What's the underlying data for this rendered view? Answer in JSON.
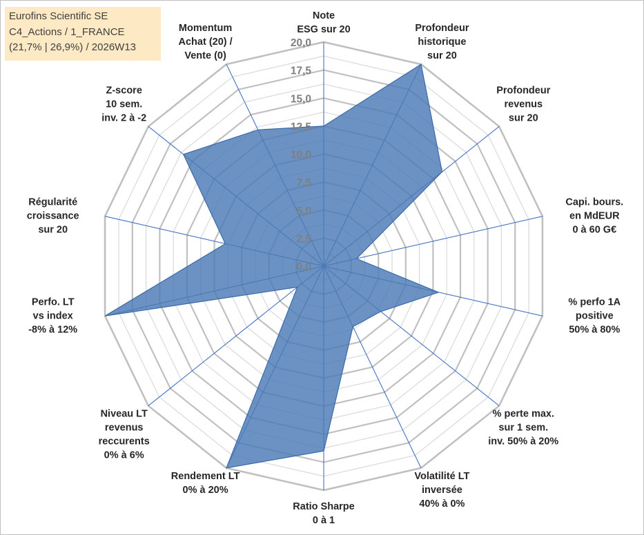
{
  "info_box": {
    "line1": "Eurofins Scientific SE",
    "line2": "C4_Actions / 1_FRANCE",
    "line3": "(21,7% | 26,9%) / 2026W13"
  },
  "colors": {
    "fill": "#4a7ab5",
    "stroke": "#3a6aa8",
    "spoke": "#4472c4",
    "grid_major": "#c0c0c0",
    "grid_minor": "#d9d9d9",
    "info_bg": "#fde9c4"
  },
  "chart_data": {
    "type": "radar",
    "title": "",
    "rlim": [
      0,
      20
    ],
    "tick_labels": [
      "0,0",
      "2,5",
      "5,0",
      "7,5",
      "10,0",
      "12,5",
      "15,0",
      "17,5",
      "20,0"
    ],
    "axes": [
      [
        "Note",
        "ESG sur 20"
      ],
      [
        "Profondeur",
        "historique",
        "sur 20"
      ],
      [
        "Profondeur",
        "revenus",
        "sur 20"
      ],
      [
        "Capi. bours.",
        "en MdEUR",
        "0 à 60 G€"
      ],
      [
        "% perfo 1A",
        "positive",
        "50% à 80%"
      ],
      [
        "% perte max.",
        "sur 1 sem.",
        "inv. 50% à 20%"
      ],
      [
        "Volatilité LT",
        "inversée",
        "40% à 0%"
      ],
      [
        "Ratio Sharpe",
        "0 à 1"
      ],
      [
        "Rendement LT",
        "0% à 20%"
      ],
      [
        "Niveau LT",
        "revenus",
        "reccurents",
        "0% à 6%"
      ],
      [
        "Perfo. LT",
        "vs index",
        "-8% à 12%"
      ],
      [
        "Régularité",
        "croissance",
        "sur 20"
      ],
      [
        "Z-score",
        "10 sem.",
        "inv. 2 à -2"
      ],
      [
        "Momentum",
        "Achat (20) /",
        "Vente (0)"
      ]
    ],
    "series": [
      {
        "name": "Eurofins Scientific SE",
        "values": [
          12.5,
          20.0,
          13.5,
          3.0,
          10.5,
          6.5,
          6.0,
          16.5,
          20.0,
          3.0,
          20.0,
          9.0,
          16.0,
          13.5
        ]
      }
    ]
  }
}
